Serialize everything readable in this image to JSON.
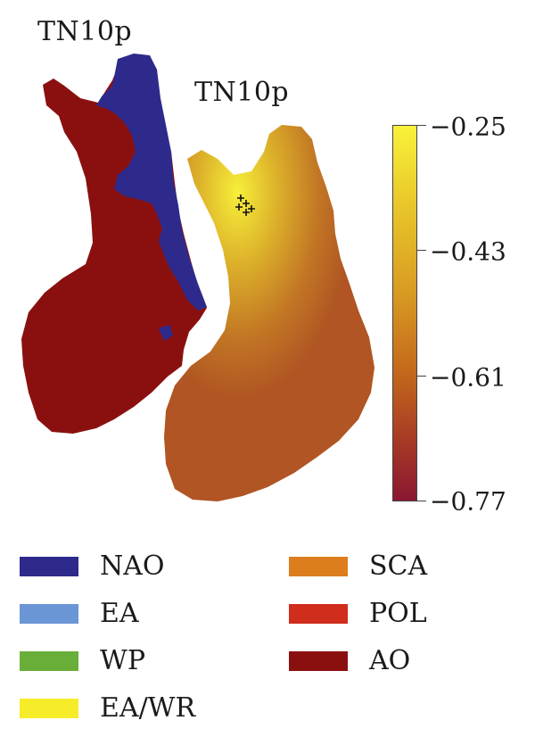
{
  "maps": {
    "left_title": "TN10p",
    "right_title": "TN10p"
  },
  "colorbar": {
    "ticks": [
      "−0.25",
      "−0.43",
      "−0.61",
      "−0.77"
    ],
    "range": [
      -0.77,
      -0.25
    ],
    "colors": {
      "top": "#f9f23a",
      "bottom": "#8a1732"
    }
  },
  "legend": {
    "items": [
      {
        "label": "NAO",
        "color": "#2e2a8c"
      },
      {
        "label": "EA",
        "color": "#6b96d6"
      },
      {
        "label": "WP",
        "color": "#6aae3a"
      },
      {
        "label": "EA/WR",
        "color": "#f6ec2a"
      },
      {
        "label": "SCA",
        "color": "#dc7e1e"
      },
      {
        "label": "POL",
        "color": "#d02d1c"
      },
      {
        "label": "AO",
        "color": "#8a1010"
      }
    ]
  }
}
